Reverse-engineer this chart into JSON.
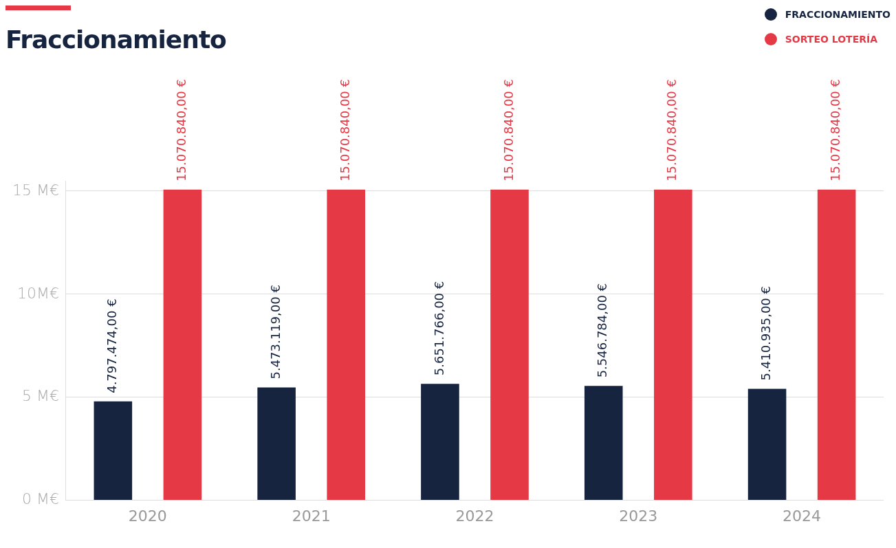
{
  "chart_data": {
    "type": "bar",
    "title": "Fraccionamiento",
    "categories": [
      "2020",
      "2021",
      "2022",
      "2023",
      "2024"
    ],
    "series": [
      {
        "name": "FRACCIONAMIENTO",
        "color": "#172440",
        "values": [
          4797474,
          5473119,
          5651766,
          5546784,
          5410935
        ],
        "value_labels": [
          "4.797.474,00 €",
          "5.473.119,00 €",
          "5.651.766,00 €",
          "5.546.784,00 €",
          "5.410.935,00 €"
        ]
      },
      {
        "name": "SORTEO LOTERÍA",
        "color": "#e63946",
        "values": [
          15070840,
          15070840,
          15070840,
          15070840,
          15070840
        ],
        "value_labels": [
          "15.070.840,00 €",
          "15.070.840,00 €",
          "15.070.840,00 €",
          "15.070.840,00 €",
          "15.070.840,00 €"
        ]
      }
    ],
    "ylim": [
      0,
      15500000
    ],
    "yticks": [
      {
        "value": 0,
        "label": "0 M€"
      },
      {
        "value": 5000000,
        "label": "5 M€"
      },
      {
        "value": 10000000,
        "label": "10M€"
      },
      {
        "value": 15000000,
        "label": "15 M€"
      }
    ],
    "grid": "y",
    "legend": "top right"
  }
}
